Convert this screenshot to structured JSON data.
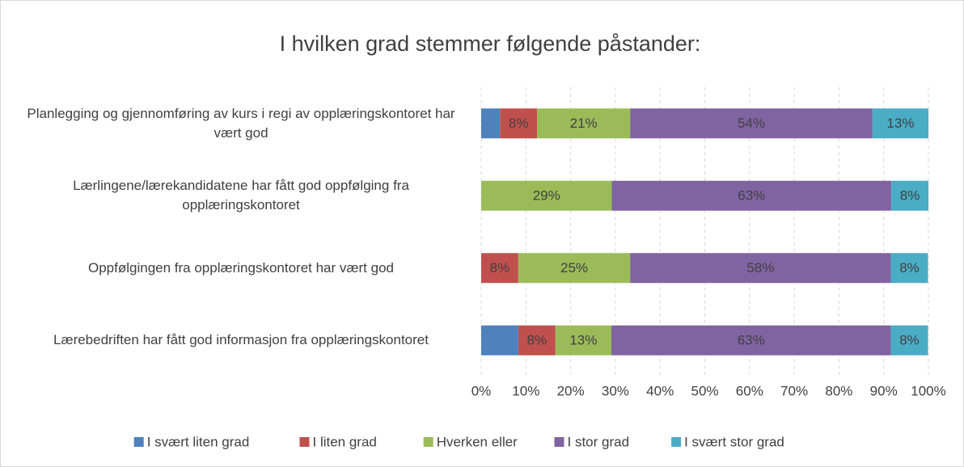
{
  "chart_data": {
    "type": "stacked_bar_horizontal",
    "title": "I hvilken grad stemmer følgende påstander:",
    "categories": [
      "Planlegging og gjennomføring av kurs i regi av opplæringskontoret har vært god",
      "Lærlingene/lærekandidatene har fått god oppfølging fra opplæringskontoret",
      "Oppfølgingen fra opplæringskontoret har vært god",
      "Lærebedriften har fått god informasjon fra opplæringskontoret"
    ],
    "series": [
      {
        "name": "I svært liten grad",
        "color": "#4f81bd",
        "values": [
          4.2,
          0,
          0,
          8.3
        ],
        "value_labels": [
          null,
          null,
          null,
          null
        ]
      },
      {
        "name": "I liten grad",
        "color": "#c0504d",
        "values": [
          8.3,
          0,
          8.3,
          8.3
        ],
        "value_labels": [
          "8%",
          null,
          "8%",
          "8%"
        ]
      },
      {
        "name": "Hverken eller",
        "color": "#9bbb59",
        "values": [
          20.8,
          29.2,
          25,
          12.5
        ],
        "value_labels": [
          "21%",
          "29%",
          "25%",
          "13%"
        ]
      },
      {
        "name": "I stor grad",
        "color": "#8064a2",
        "values": [
          54.2,
          62.5,
          58.3,
          62.5
        ],
        "value_labels": [
          "54%",
          "63%",
          "58%",
          "63%"
        ]
      },
      {
        "name": "I svært stor grad",
        "color": "#4bacc6",
        "values": [
          12.5,
          8.3,
          8.3,
          8.3
        ],
        "value_labels": [
          "13%",
          "8%",
          "8%",
          "8%"
        ]
      }
    ],
    "xlim": [
      0,
      100
    ],
    "xticks": [
      {
        "value": 0,
        "label": "0%"
      },
      {
        "value": 10,
        "label": "10%"
      },
      {
        "value": 20,
        "label": "20%"
      },
      {
        "value": 30,
        "label": "30%"
      },
      {
        "value": 40,
        "label": "40%"
      },
      {
        "value": 50,
        "label": "50%"
      },
      {
        "value": 60,
        "label": "60%"
      },
      {
        "value": 70,
        "label": "70%"
      },
      {
        "value": 80,
        "label": "80%"
      },
      {
        "value": 90,
        "label": "90%"
      },
      {
        "value": 100,
        "label": "100%"
      }
    ],
    "grid": true,
    "legend": "bottom"
  }
}
